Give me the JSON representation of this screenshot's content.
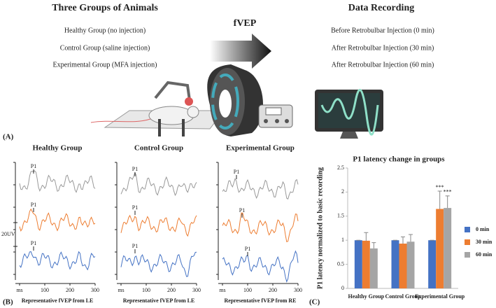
{
  "panel_a": {
    "label": "(A)",
    "groups_title": "Three Groups of Animals",
    "groups": [
      "Healthy Group (no injection)",
      "Control Group (saline injection)",
      "Experimental Group (MFA injection)"
    ],
    "method": "fVEP",
    "recording_title": "Data Recording",
    "recordings": [
      "Before Retrobulbar Injection (0 min)",
      "After Retrobulbar Injection (30 min)",
      "After Retrobulbar Injection (60 min)"
    ]
  },
  "panel_b": {
    "label": "(B)",
    "scale_label": "20UV",
    "peak_label": "P1",
    "plots": [
      {
        "title": "Healthy Group",
        "caption": "Representative fVEP from LE"
      },
      {
        "title": "Control Group",
        "caption": "Representative fVEP from LE"
      },
      {
        "title": "Experimental Group",
        "caption": "Representative fVEP from RE"
      }
    ],
    "xlim": [
      0,
      300
    ],
    "xticks": [
      {
        "value": 0,
        "label": "ms"
      },
      100,
      200,
      300
    ]
  },
  "panel_c_label": "(C)",
  "chart_data": {
    "type": "bar",
    "title": "P1 latency change in groups",
    "y_label": "P1 latency normalized to basic recording",
    "categories": [
      "Healthy Group",
      "Control Group",
      "Experimental Group"
    ],
    "series": [
      {
        "name": "0 min",
        "color": "#4472c4",
        "values": [
          1,
          1,
          1
        ],
        "errors": [
          0,
          0,
          0
        ]
      },
      {
        "name": "30 min",
        "color": "#ed7d31",
        "values": [
          0.99,
          0.93,
          1.65
        ],
        "errors": [
          0.17,
          0.14,
          0.37
        ]
      },
      {
        "name": "60 min",
        "color": "#a5a5a5",
        "values": [
          0.83,
          0.97,
          1.67
        ],
        "errors": [
          0.12,
          0.15,
          0.25
        ]
      }
    ],
    "annotations": [
      "***",
      "***"
    ],
    "ylim": [
      0,
      2.5
    ],
    "yticks": [
      0,
      0.5,
      1,
      1.5,
      2,
      2.5
    ],
    "grid": false,
    "legend": "right"
  }
}
